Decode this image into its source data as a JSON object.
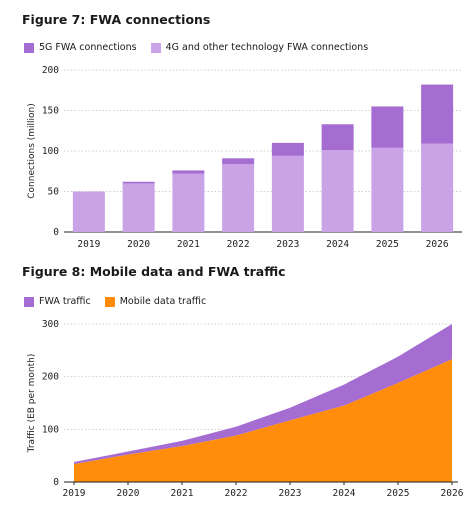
{
  "chart_data": [
    {
      "type": "bar",
      "title": "Figure 7: FWA connections",
      "ylabel": "Connections (million)",
      "xlabel": "",
      "categories": [
        "2019",
        "2020",
        "2021",
        "2022",
        "2023",
        "2024",
        "2025",
        "2026"
      ],
      "ylim": [
        0,
        200
      ],
      "yticks": [
        0,
        50,
        100,
        150,
        200
      ],
      "stacked": true,
      "grid": true,
      "legend_position": "top-left",
      "series": [
        {
          "name": "4G and other technology FWA connections",
          "color": "#c9a3e6",
          "values": [
            50,
            60,
            72,
            84,
            94,
            101,
            104,
            109
          ]
        },
        {
          "name": "5G FWA connections",
          "color": "#a56dd1",
          "values": [
            0,
            2,
            4,
            7,
            16,
            32,
            51,
            73
          ]
        }
      ]
    },
    {
      "type": "area",
      "title": "Figure 8: Mobile data and FWA traffic",
      "ylabel": "Traffic (EB per month)",
      "xlabel": "",
      "x": [
        "2019",
        "2020",
        "2021",
        "2022",
        "2023",
        "2024",
        "2025",
        "2026"
      ],
      "ylim": [
        0,
        300
      ],
      "yticks": [
        0,
        100,
        200,
        300
      ],
      "stacked": true,
      "grid": true,
      "legend_position": "top-left",
      "series": [
        {
          "name": "Mobile data traffic",
          "color": "#ff8c0a",
          "values": [
            34,
            52,
            68,
            88,
            117,
            145,
            188,
            233
          ]
        },
        {
          "name": "FWA traffic",
          "color": "#a56dd1",
          "values": [
            4,
            6,
            10,
            17,
            24,
            40,
            50,
            67
          ]
        }
      ]
    }
  ]
}
